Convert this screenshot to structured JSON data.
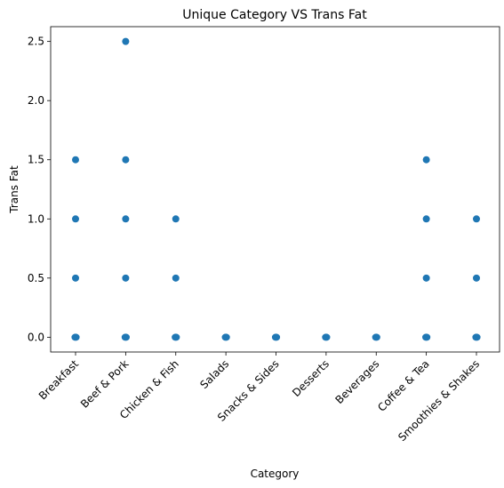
{
  "chart_data": {
    "type": "scatter",
    "title": "Unique Category VS Trans Fat",
    "xlabel": "Category",
    "ylabel": "Trans Fat",
    "categories": [
      "Breakfast",
      "Beef & Pork",
      "Chicken & Fish",
      "Salads",
      "Snacks & Sides",
      "Desserts",
      "Beverages",
      "Coffee & Tea",
      "Smoothies & Shakes"
    ],
    "yticks": [
      "0.0",
      "0.5",
      "1.0",
      "1.5",
      "2.0",
      "2.5"
    ],
    "ylim": [
      -0.125,
      2.625
    ],
    "grid": false,
    "legend": "none",
    "marker_color": "#1f77b4",
    "points": [
      {
        "category": "Breakfast",
        "y": 0.0
      },
      {
        "category": "Breakfast",
        "y": 0.5
      },
      {
        "category": "Breakfast",
        "y": 1.0
      },
      {
        "category": "Breakfast",
        "y": 1.5
      },
      {
        "category": "Beef & Pork",
        "y": 0.0
      },
      {
        "category": "Beef & Pork",
        "y": 0.5
      },
      {
        "category": "Beef & Pork",
        "y": 1.0
      },
      {
        "category": "Beef & Pork",
        "y": 1.5
      },
      {
        "category": "Beef & Pork",
        "y": 2.5
      },
      {
        "category": "Chicken & Fish",
        "y": 0.0
      },
      {
        "category": "Chicken & Fish",
        "y": 0.5
      },
      {
        "category": "Chicken & Fish",
        "y": 1.0
      },
      {
        "category": "Salads",
        "y": 0.0
      },
      {
        "category": "Snacks & Sides",
        "y": 0.0
      },
      {
        "category": "Desserts",
        "y": 0.0
      },
      {
        "category": "Beverages",
        "y": 0.0
      },
      {
        "category": "Coffee & Tea",
        "y": 0.0
      },
      {
        "category": "Coffee & Tea",
        "y": 0.5
      },
      {
        "category": "Coffee & Tea",
        "y": 1.0
      },
      {
        "category": "Coffee & Tea",
        "y": 1.5
      },
      {
        "category": "Smoothies & Shakes",
        "y": 0.0
      },
      {
        "category": "Smoothies & Shakes",
        "y": 0.5
      },
      {
        "category": "Smoothies & Shakes",
        "y": 1.0
      }
    ]
  }
}
